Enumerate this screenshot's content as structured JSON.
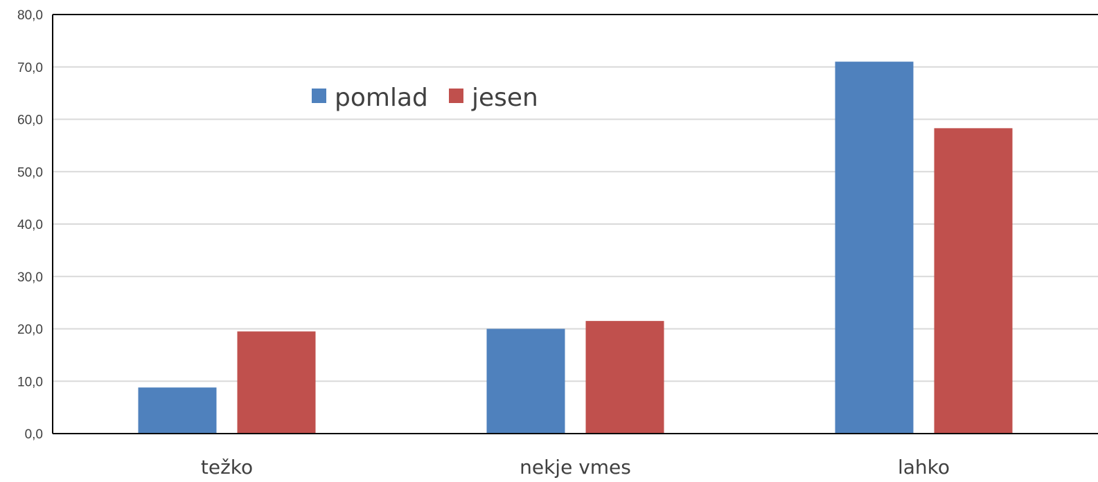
{
  "chart_data": {
    "type": "bar",
    "categories": [
      "težko",
      "nekje vmes",
      "lahko"
    ],
    "series": [
      {
        "name": "pomlad",
        "color": "#4f81bd",
        "values": [
          8.8,
          20.0,
          71.0
        ]
      },
      {
        "name": "jesen",
        "color": "#c0504d",
        "values": [
          19.5,
          21.5,
          58.3
        ]
      }
    ],
    "ylim": [
      0,
      80
    ],
    "yticks": [
      0,
      10,
      20,
      30,
      40,
      50,
      60,
      70,
      80
    ],
    "ytick_labels": [
      "0,0",
      "10,0",
      "20,0",
      "30,0",
      "40,0",
      "50,0",
      "60,0",
      "70,0",
      "80,0"
    ],
    "grid": true,
    "legend_position": "top-left-inside",
    "title": "",
    "xlabel": "",
    "ylabel": ""
  }
}
